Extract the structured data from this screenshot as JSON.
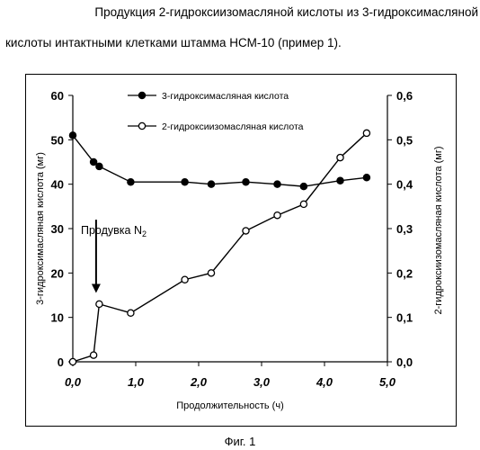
{
  "caption": {
    "line1": "Продукция 2-гидроксиизомасляной кислоты из 3-гидроксимасляной",
    "line2": "кислоты интактными клетками штамма НСМ-10 (пример 1)."
  },
  "figure_label": "Фиг. 1",
  "chart_data": {
    "type": "line",
    "xlabel": "Продолжительность (ч)",
    "ylabel_left": "3-гидроксимасляная кислота (мг)",
    "ylabel_right": "2-гидроксиизомасляная кислота (мг)",
    "xlim": [
      0,
      5
    ],
    "ylim_left": [
      0,
      60
    ],
    "ylim_right": [
      0,
      0.6
    ],
    "x_ticks": [
      "0,0",
      "1,0",
      "2,0",
      "3,0",
      "4,0",
      "5,0"
    ],
    "y_left_ticks": [
      "0",
      "10",
      "20",
      "30",
      "40",
      "50",
      "60"
    ],
    "y_right_ticks": [
      "0,0",
      "0,1",
      "0,2",
      "0,3",
      "0,4",
      "0,5",
      "0,6"
    ],
    "legend_position": "top",
    "grid": false,
    "annotation": {
      "text": "Продувка N",
      "subscript": "2",
      "x": 0.37,
      "note_arrow_from_y": 32,
      "note_arrow_to_y": 15.5
    },
    "series": [
      {
        "name": "3-гидроксимасляная кислота",
        "axis": "left",
        "marker": "filled",
        "x": [
          0.0,
          0.33,
          0.42,
          0.92,
          1.78,
          2.2,
          2.75,
          3.25,
          3.67,
          4.25,
          4.67
        ],
        "y": [
          51,
          45,
          44,
          40.5,
          40.5,
          40,
          40.5,
          40,
          39.5,
          40.8,
          41.5
        ]
      },
      {
        "name": "2-гидроксиизомасляная кислота",
        "axis": "right",
        "marker": "open",
        "x": [
          0.0,
          0.33,
          0.42,
          0.92,
          1.78,
          2.2,
          2.75,
          3.25,
          3.67,
          4.25,
          4.67
        ],
        "y": [
          0.0,
          0.015,
          0.13,
          0.11,
          0.185,
          0.2,
          0.295,
          0.33,
          0.355,
          0.46,
          0.515
        ]
      }
    ]
  }
}
